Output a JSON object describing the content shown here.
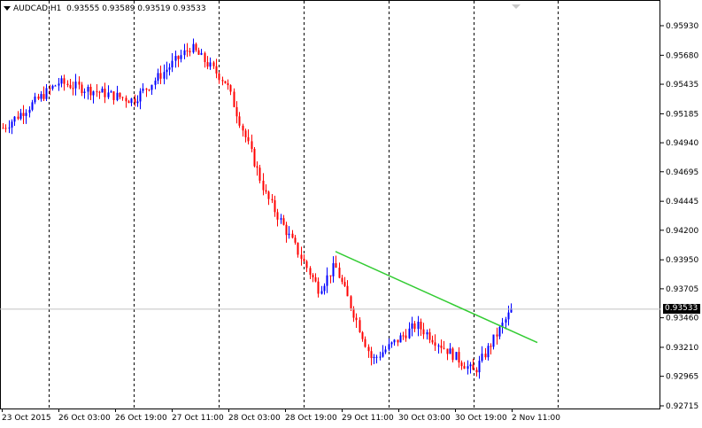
{
  "header": {
    "symbol": "AUDCAD,H1",
    "ohlc": "0.93555 0.93589 0.93519 0.93533"
  },
  "price_axis": {
    "ticks": [
      "0.95930",
      "0.95680",
      "0.95435",
      "0.95185",
      "0.94940",
      "0.94695",
      "0.94445",
      "0.94200",
      "0.93950",
      "0.93705",
      "0.93460",
      "0.93210",
      "0.92965",
      "0.92715"
    ],
    "current_price": "0.93533"
  },
  "time_axis": {
    "labels": [
      "23 Oct 2015",
      "26 Oct 03:00",
      "26 Oct 19:00",
      "27 Oct 11:00",
      "28 Oct 03:00",
      "28 Oct 19:00",
      "29 Oct 11:00",
      "30 Oct 03:00",
      "30 Oct 19:00",
      "2 Nov 11:00"
    ]
  },
  "colors": {
    "bull": "#0000ff",
    "bear": "#ff0000",
    "trendline": "#33cc33",
    "grid": "#000000",
    "price_line": "#c0c0c0"
  },
  "chart_data": {
    "type": "candlestick",
    "symbol": "AUDCAD",
    "timeframe": "H1",
    "ylim": [
      0.92715,
      0.9605
    ],
    "grid": "vertical dashed",
    "close_path": [
      {
        "t": "23 Oct 2015",
        "price": 0.9506
      },
      {
        "t": "26 Oct 03:00",
        "price": 0.9545
      },
      {
        "t": "26 Oct 19:00",
        "price": 0.953
      },
      {
        "t": "27 Oct 11:00",
        "price": 0.9575
      },
      {
        "t": "27 Oct 11:00+",
        "price": 0.9545
      },
      {
        "t": "28 Oct 03:00",
        "price": 0.945
      },
      {
        "t": "28 Oct 19:00",
        "price": 0.937
      },
      {
        "t": "28 Oct 19:00+",
        "price": 0.939
      },
      {
        "t": "29 Oct 11:00",
        "price": 0.931
      },
      {
        "t": "30 Oct 03:00",
        "price": 0.934
      },
      {
        "t": "30 Oct 19:00",
        "price": 0.93
      },
      {
        "t": "2 Nov 11:00",
        "price": 0.93533
      }
    ],
    "trendline": {
      "from": {
        "t": "28 Oct 19:00",
        "price": 0.9402
      },
      "to": {
        "t": "2 Nov 11:00",
        "price": 0.9325
      }
    }
  }
}
